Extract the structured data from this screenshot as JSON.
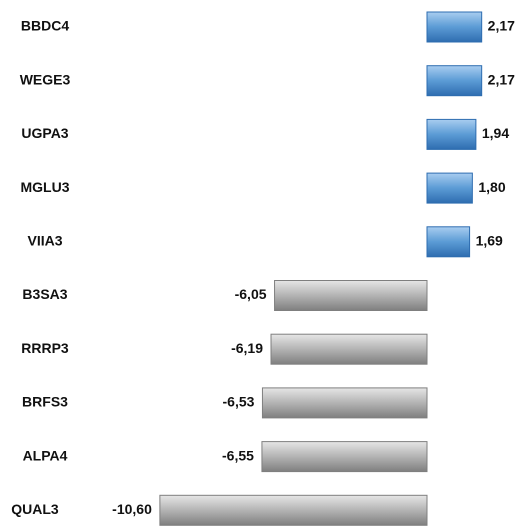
{
  "chart_data": {
    "type": "barh",
    "categories": [
      "BBDC4",
      "WEGE3",
      "UGPA3",
      "MGLU3",
      "VIIA3",
      "B3SA3",
      "RRRP3",
      "BRFS3",
      "ALPA4",
      "QUAL3"
    ],
    "values": [
      2.17,
      2.17,
      1.94,
      1.8,
      1.69,
      -6.05,
      -6.19,
      -6.53,
      -6.55,
      -10.6
    ],
    "value_labels": [
      "2,17",
      "2,17",
      "1,94",
      "1,80",
      "1,69",
      "-6,05",
      "-6,19",
      "-6,53",
      "-6,55",
      "-10,60"
    ],
    "positive_color": "#5b9bd5",
    "negative_color": "#a6a6a6"
  }
}
